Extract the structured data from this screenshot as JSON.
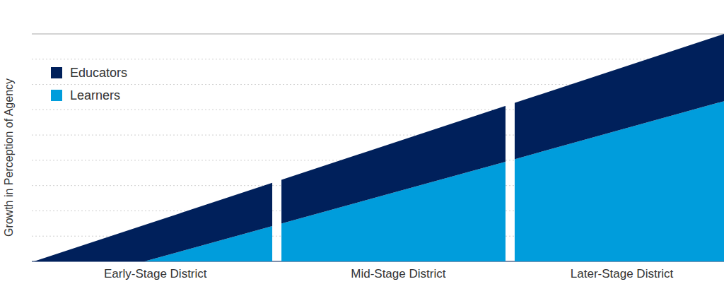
{
  "chart_data": {
    "type": "area",
    "stacked": true,
    "y_label": "Growth in Perception of Agency",
    "x": [
      0,
      16,
      35,
      70,
      100
    ],
    "series": [
      {
        "name": "Educators",
        "color": "#00205b",
        "values": [
          0,
          1.44,
          1.72,
          2.23,
          2.66
        ]
      },
      {
        "name": "Learners",
        "color": "#009ddc",
        "values": [
          0,
          0,
          1.43,
          4.07,
          6.34
        ]
      }
    ],
    "xlim": [
      0,
      100
    ],
    "xticks": [
      {
        "value": 17.6,
        "label": "Early-Stage District"
      },
      {
        "value": 52.8,
        "label": "Mid-Stage District"
      },
      {
        "value": 85.2,
        "label": "Later-Stage District"
      }
    ],
    "ylim": [
      0,
      9
    ],
    "yticks": [
      0,
      1,
      2,
      3,
      4,
      5,
      6,
      7,
      8,
      9
    ],
    "grid": true,
    "legend": "upper-left",
    "tick_labels": "x"
  }
}
